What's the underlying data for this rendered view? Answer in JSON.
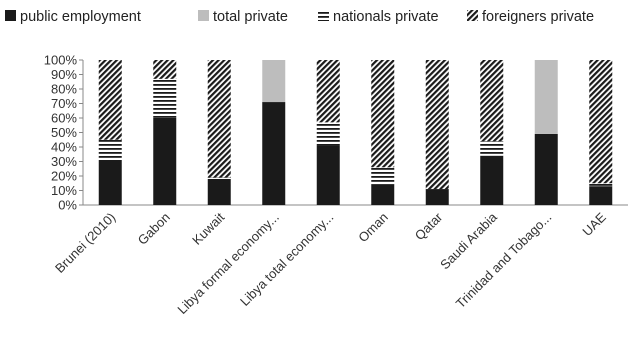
{
  "chart_data": {
    "type": "bar",
    "stacked": true,
    "percent": true,
    "title": "",
    "xlabel": "",
    "ylabel": "",
    "ylim": [
      0,
      100
    ],
    "y_ticks": [
      "0%",
      "10%",
      "20%",
      "30%",
      "40%",
      "50%",
      "60%",
      "70%",
      "80%",
      "90%",
      "100%"
    ],
    "categories": [
      "Brunei (2010)",
      "Gabon",
      "Kuwait",
      "Libya formal economy...",
      "Libya total economy...",
      "Oman",
      "Qatar",
      "Saudi Arabia",
      "Trinidad and Tobago...",
      "UAE"
    ],
    "legend_position": "top",
    "series": [
      {
        "name": "public employment",
        "color": "#1a1a1a",
        "pattern": "solid",
        "values": [
          30,
          60,
          18,
          71,
          41,
          14,
          11,
          34,
          49,
          13
        ]
      },
      {
        "name": "total private",
        "color": "#bdbdbd",
        "pattern": "solid",
        "values": [
          0,
          0,
          0,
          29,
          0,
          0,
          0,
          0,
          51,
          0
        ]
      },
      {
        "name": "nationals private",
        "color": "#1a1a1a",
        "pattern": "horizontal-lines",
        "values": [
          15,
          27,
          1,
          0,
          16,
          12,
          0,
          10,
          0,
          2
        ]
      },
      {
        "name": "foreigners private",
        "color": "#1a1a1a",
        "pattern": "diagonal-lines",
        "values": [
          55,
          13,
          81,
          0,
          43,
          74,
          89,
          56,
          0,
          85
        ]
      }
    ]
  }
}
